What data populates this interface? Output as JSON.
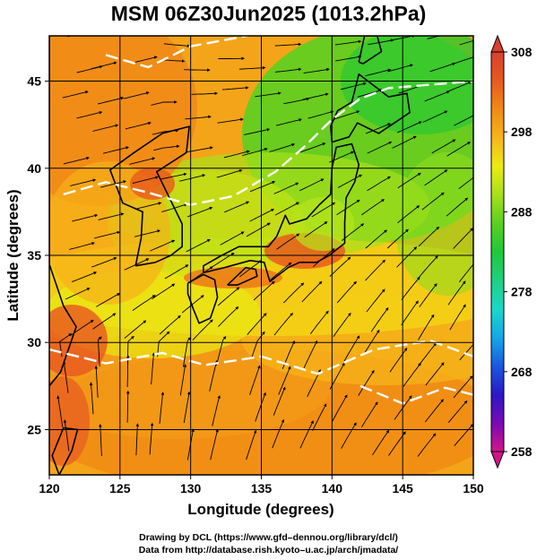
{
  "title": "MSM 06Z30Jun2025 (1013.2hPa)",
  "map": {
    "xlabel": "Longitude (degrees)",
    "ylabel": "Latitude  (degrees)",
    "lon_range": [
      120,
      150
    ],
    "lat_range": [
      22.4,
      47.6
    ],
    "lon_ticks": [
      "120",
      "125",
      "130",
      "135",
      "140",
      "145",
      "150"
    ],
    "lat_ticks": [
      "25",
      "30",
      "35",
      "40",
      "45"
    ],
    "field": "temperature",
    "overlay": "streamlines"
  },
  "colorbar": {
    "min": 258,
    "max": 308,
    "tick_labels": [
      "308",
      "298",
      "288",
      "278",
      "268",
      "258"
    ],
    "colors": [
      "#d4148c",
      "#7a0ab4",
      "#2a18c8",
      "#1a58e0",
      "#14a8e8",
      "#18d8c8",
      "#1ed080",
      "#20c838",
      "#5ad020",
      "#a8e018",
      "#ecec10",
      "#f8b418",
      "#f08a14",
      "#e85820",
      "#d84030"
    ]
  },
  "credits": {
    "line1": "Drawing by DCL (https://www.gfd–dennou.org/library/dcl/)",
    "line2": "Data from http://database.rish.kyoto–u.ac.jp/arch/jmadata/"
  }
}
